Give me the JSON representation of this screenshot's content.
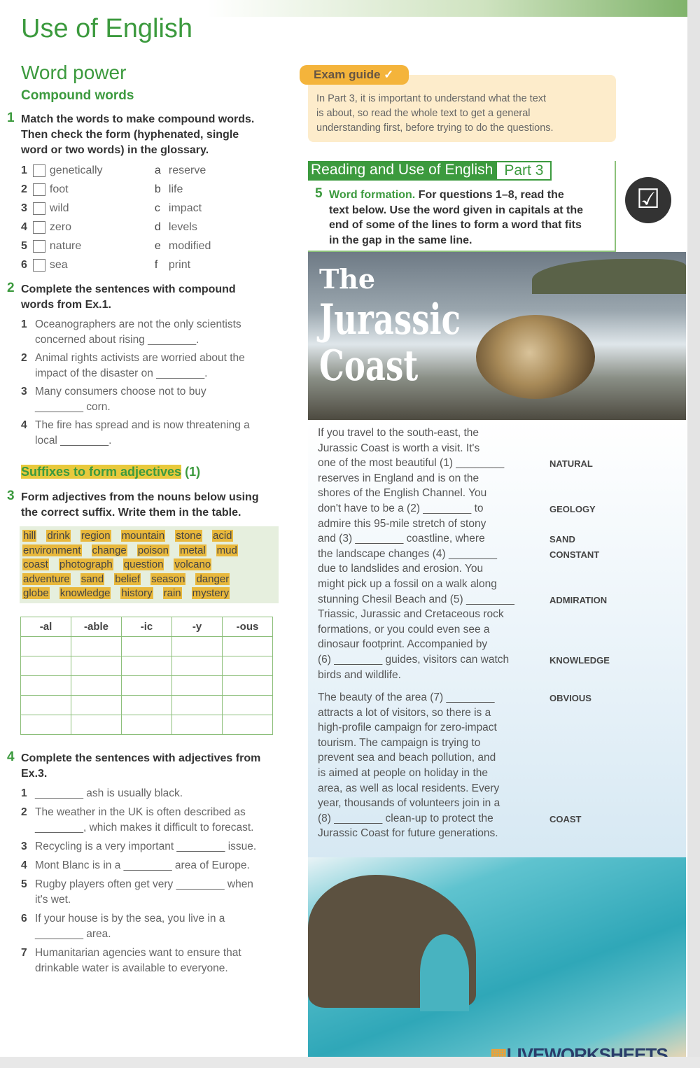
{
  "title": "Use of English",
  "section": "Word power",
  "subsection": "Compound words",
  "ex1": {
    "num": "1",
    "instruction": [
      "Match the words to make compound words.",
      "Then check the form (hyphenated, single",
      "word or two words) in the glossary."
    ],
    "left": [
      {
        "n": "1",
        "w": "genetically"
      },
      {
        "n": "2",
        "w": "foot"
      },
      {
        "n": "3",
        "w": "wild"
      },
      {
        "n": "4",
        "w": "zero"
      },
      {
        "n": "5",
        "w": "nature"
      },
      {
        "n": "6",
        "w": "sea"
      }
    ],
    "right": [
      {
        "n": "a",
        "w": "reserve"
      },
      {
        "n": "b",
        "w": "life"
      },
      {
        "n": "c",
        "w": "impact"
      },
      {
        "n": "d",
        "w": "levels"
      },
      {
        "n": "e",
        "w": "modified"
      },
      {
        "n": "f",
        "w": "print"
      }
    ]
  },
  "ex2": {
    "num": "2",
    "instruction": [
      "Complete the sentences with compound",
      "words from Ex.1."
    ],
    "items": [
      {
        "n": "1",
        "lines": [
          "Oceanographers are not the only scientists",
          "concerned about rising ________."
        ]
      },
      {
        "n": "2",
        "lines": [
          "Animal rights activists are worried about the",
          "impact of the disaster on ________."
        ]
      },
      {
        "n": "3",
        "lines": [
          "Many consumers choose not to buy",
          "________ corn."
        ]
      },
      {
        "n": "4",
        "lines": [
          "The fire has spread and is now threatening a",
          "local ________."
        ]
      }
    ]
  },
  "suffix_heading": "Suffixes to form adjectives",
  "suffix_heading_num": "(1)",
  "ex3": {
    "num": "3",
    "instruction": [
      "Form adjectives from the nouns below using",
      "the correct suffix. Write them in the table."
    ],
    "words": [
      [
        "hill",
        "drink",
        "region",
        "mountain",
        "stone",
        "acid"
      ],
      [
        "environment",
        "change",
        "poison",
        "metal",
        "mud"
      ],
      [
        "coast",
        "photograph",
        "question",
        "volcano"
      ],
      [
        "adventure",
        "sand",
        "belief",
        "season",
        "danger"
      ],
      [
        "globe",
        "knowledge",
        "history",
        "rain",
        "mystery"
      ]
    ],
    "table_headers": [
      "-al",
      "-able",
      "-ic",
      "-y",
      "-ous"
    ]
  },
  "ex4": {
    "num": "4",
    "instruction": [
      "Complete the sentences with adjectives from",
      "Ex.3."
    ],
    "items": [
      {
        "n": "1",
        "lines": [
          "________ ash is usually black."
        ]
      },
      {
        "n": "2",
        "lines": [
          "The weather in the UK is often described as",
          "________, which makes it difficult to forecast."
        ]
      },
      {
        "n": "3",
        "lines": [
          "Recycling is a very important ________ issue."
        ]
      },
      {
        "n": "4",
        "lines": [
          "Mont Blanc is in a ________ area of Europe."
        ]
      },
      {
        "n": "5",
        "lines": [
          "Rugby players often get very ________ when",
          "it's wet."
        ]
      },
      {
        "n": "6",
        "lines": [
          "If your house is by the sea, you live in a",
          "________ area."
        ]
      },
      {
        "n": "7",
        "lines": [
          "Humanitarian agencies want to ensure that",
          "drinkable water is available to everyone."
        ]
      }
    ]
  },
  "exam_guide": {
    "label": "Exam guide",
    "check": "✓",
    "lines": [
      "In Part 3, it is important to understand what the text",
      "is about, so read the whole text to get a general",
      "understanding first, before trying to do the questions."
    ]
  },
  "reading": {
    "title": "Reading and Use of English",
    "part": "Part 3"
  },
  "ex5": {
    "num": "5",
    "lead": "Word formation.",
    "lines": [
      "For questions 1–8, read the",
      "text below. Use the word given in capitals at the",
      "end of some of the lines to form a word that fits",
      "in the gap in the same line."
    ]
  },
  "article_title": [
    "The",
    "Jurassic",
    "Coast"
  ],
  "passage": [
    {
      "t": "If you travel to the south-east, the",
      "k": ""
    },
    {
      "t": "Jurassic Coast is worth a visit. It's",
      "k": ""
    },
    {
      "t": "one of the most beautiful (1) ________",
      "k": "NATURAL"
    },
    {
      "t": "reserves in England and is on the",
      "k": ""
    },
    {
      "t": "shores of the English Channel. You",
      "k": ""
    },
    {
      "t": "don't have to be a (2) ________ to",
      "k": "GEOLOGY"
    },
    {
      "t": "admire this 95-mile stretch of stony",
      "k": ""
    },
    {
      "t": "and (3) ________ coastline, where",
      "k": "SAND"
    },
    {
      "t": "the landscape changes (4) ________",
      "k": "CONSTANT"
    },
    {
      "t": "due to landslides and erosion. You",
      "k": ""
    },
    {
      "t": "might pick up a fossil on a walk along",
      "k": ""
    },
    {
      "t": "stunning Chesil Beach and (5) ________",
      "k": "ADMIRATION"
    },
    {
      "t": "Triassic, Jurassic and Cretaceous rock",
      "k": ""
    },
    {
      "t": "formations, or you could even see a",
      "k": ""
    },
    {
      "t": "dinosaur footprint. Accompanied by",
      "k": ""
    },
    {
      "t": "(6) ________ guides, visitors can watch",
      "k": "KNOWLEDGE"
    },
    {
      "t": "birds and wildlife.",
      "k": ""
    }
  ],
  "passage2": [
    {
      "t": "The beauty of the area (7) ________",
      "k": "OBVIOUS"
    },
    {
      "t": "attracts a lot of visitors, so there is a",
      "k": ""
    },
    {
      "t": "high-profile campaign for zero-impact",
      "k": ""
    },
    {
      "t": "tourism. The campaign is trying to",
      "k": ""
    },
    {
      "t": "prevent sea and beach pollution, and",
      "k": ""
    },
    {
      "t": "is aimed at people on holiday in the",
      "k": ""
    },
    {
      "t": "area, as well as local residents. Every",
      "k": ""
    },
    {
      "t": "year, thousands of volunteers join in a",
      "k": ""
    },
    {
      "t": "(8) ________ clean-up to protect the",
      "k": "COAST"
    },
    {
      "t": "Jurassic Coast for future generations.",
      "k": ""
    }
  ],
  "watermark": "LIVEWORKSHEETS",
  "colors": {
    "green": "#3c9a3e",
    "highlight": "#e8b83c",
    "guide_bg": "#fdeccb"
  }
}
